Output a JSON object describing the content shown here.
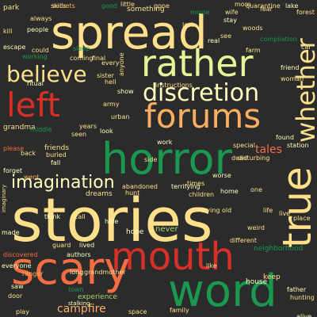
{
  "words": {
    "spread": "spread",
    "rather": "rather",
    "believe": "believe",
    "discretion": "discretion",
    "left": "left",
    "forums": "forums",
    "whether": "whether",
    "horror": "horror",
    "imagination": "imagination",
    "true": "true",
    "stories": "stories",
    "mouth": "mouth",
    "scary": "scary",
    "word": "word",
    "campfire": "campfire",
    "tales": "tales",
    "friends": "friends",
    "experience": "experience",
    "something": "something",
    "grandma": "grandma",
    "dreams": "dreams",
    "never": "never",
    "hope": "hope",
    "neighborhood": "neighborhood",
    "quarantine": "quarantine",
    "lake": "lake",
    "secrets": "secrets",
    "always": "always",
    "people": "people",
    "forest": "forest",
    "woods": "woods",
    "compilation": "compilation",
    "terrifying": "terrifying",
    "abandoned": "abandoned",
    "disturbing": "disturbing",
    "station": "station",
    "ranger": "ranger",
    "father": "father",
    "hunting": "hunting",
    "authors": "authors",
    "guard": "guard",
    "discovered": "discovered",
    "skills": "skills",
    "house": "house",
    "keep": "keep",
    "town": "town",
    "alive": "alive",
    "space": "space",
    "ritual": "ritual",
    "escape": "escape",
    "instructions": "instructions",
    "movie": "movie",
    "little": "little",
    "wife": "wife",
    "stay": "stay",
    "final": "final",
    "coming": "coming",
    "working": "working",
    "forget": "forget",
    "back": "back",
    "please": "please",
    "dead": "dead",
    "special": "special",
    "strange": "strange",
    "found": "found",
    "worse": "worse",
    "hunt": "hunt",
    "different": "different",
    "everyone": "everyone",
    "imaginary": "imaginary",
    "stalking": "stalking",
    "work": "work",
    "urban": "urban",
    "years": "years",
    "play": "play",
    "door": "door",
    "saw": "saw",
    "call": "call",
    "like": "like",
    "live": "live",
    "went": "went",
    "think": "think",
    "side": "side",
    "made": "made",
    "times": "times",
    "place": "place",
    "look": "look",
    "fear": "fear",
    "friend": "friend",
    "woman": "woman",
    "hell": "hell",
    "real": "real",
    "show": "show",
    "sister": "sister",
    "middle": "middle",
    "seen": "seen",
    "park": "park",
    "kill": "kill",
    "see": "see",
    "could": "could",
    "every": "every",
    "good": "good",
    "anyone": "anyone",
    "army": "army",
    "hide": "hide",
    "weird": "weird",
    "car": "car",
    "farm": "farm",
    "children": "children",
    "life": "life",
    "home": "home",
    "one": "one",
    "lived": "lived",
    "gone": "gone",
    "mom": "mom",
    "long": "long",
    "grandmother": "grandmother",
    "buried": "buried",
    "old": "old",
    "family": "family",
    "fall": "fall",
    "trying": "trying",
    "lost": "lost",
    "sleep": "sleep"
  }
}
